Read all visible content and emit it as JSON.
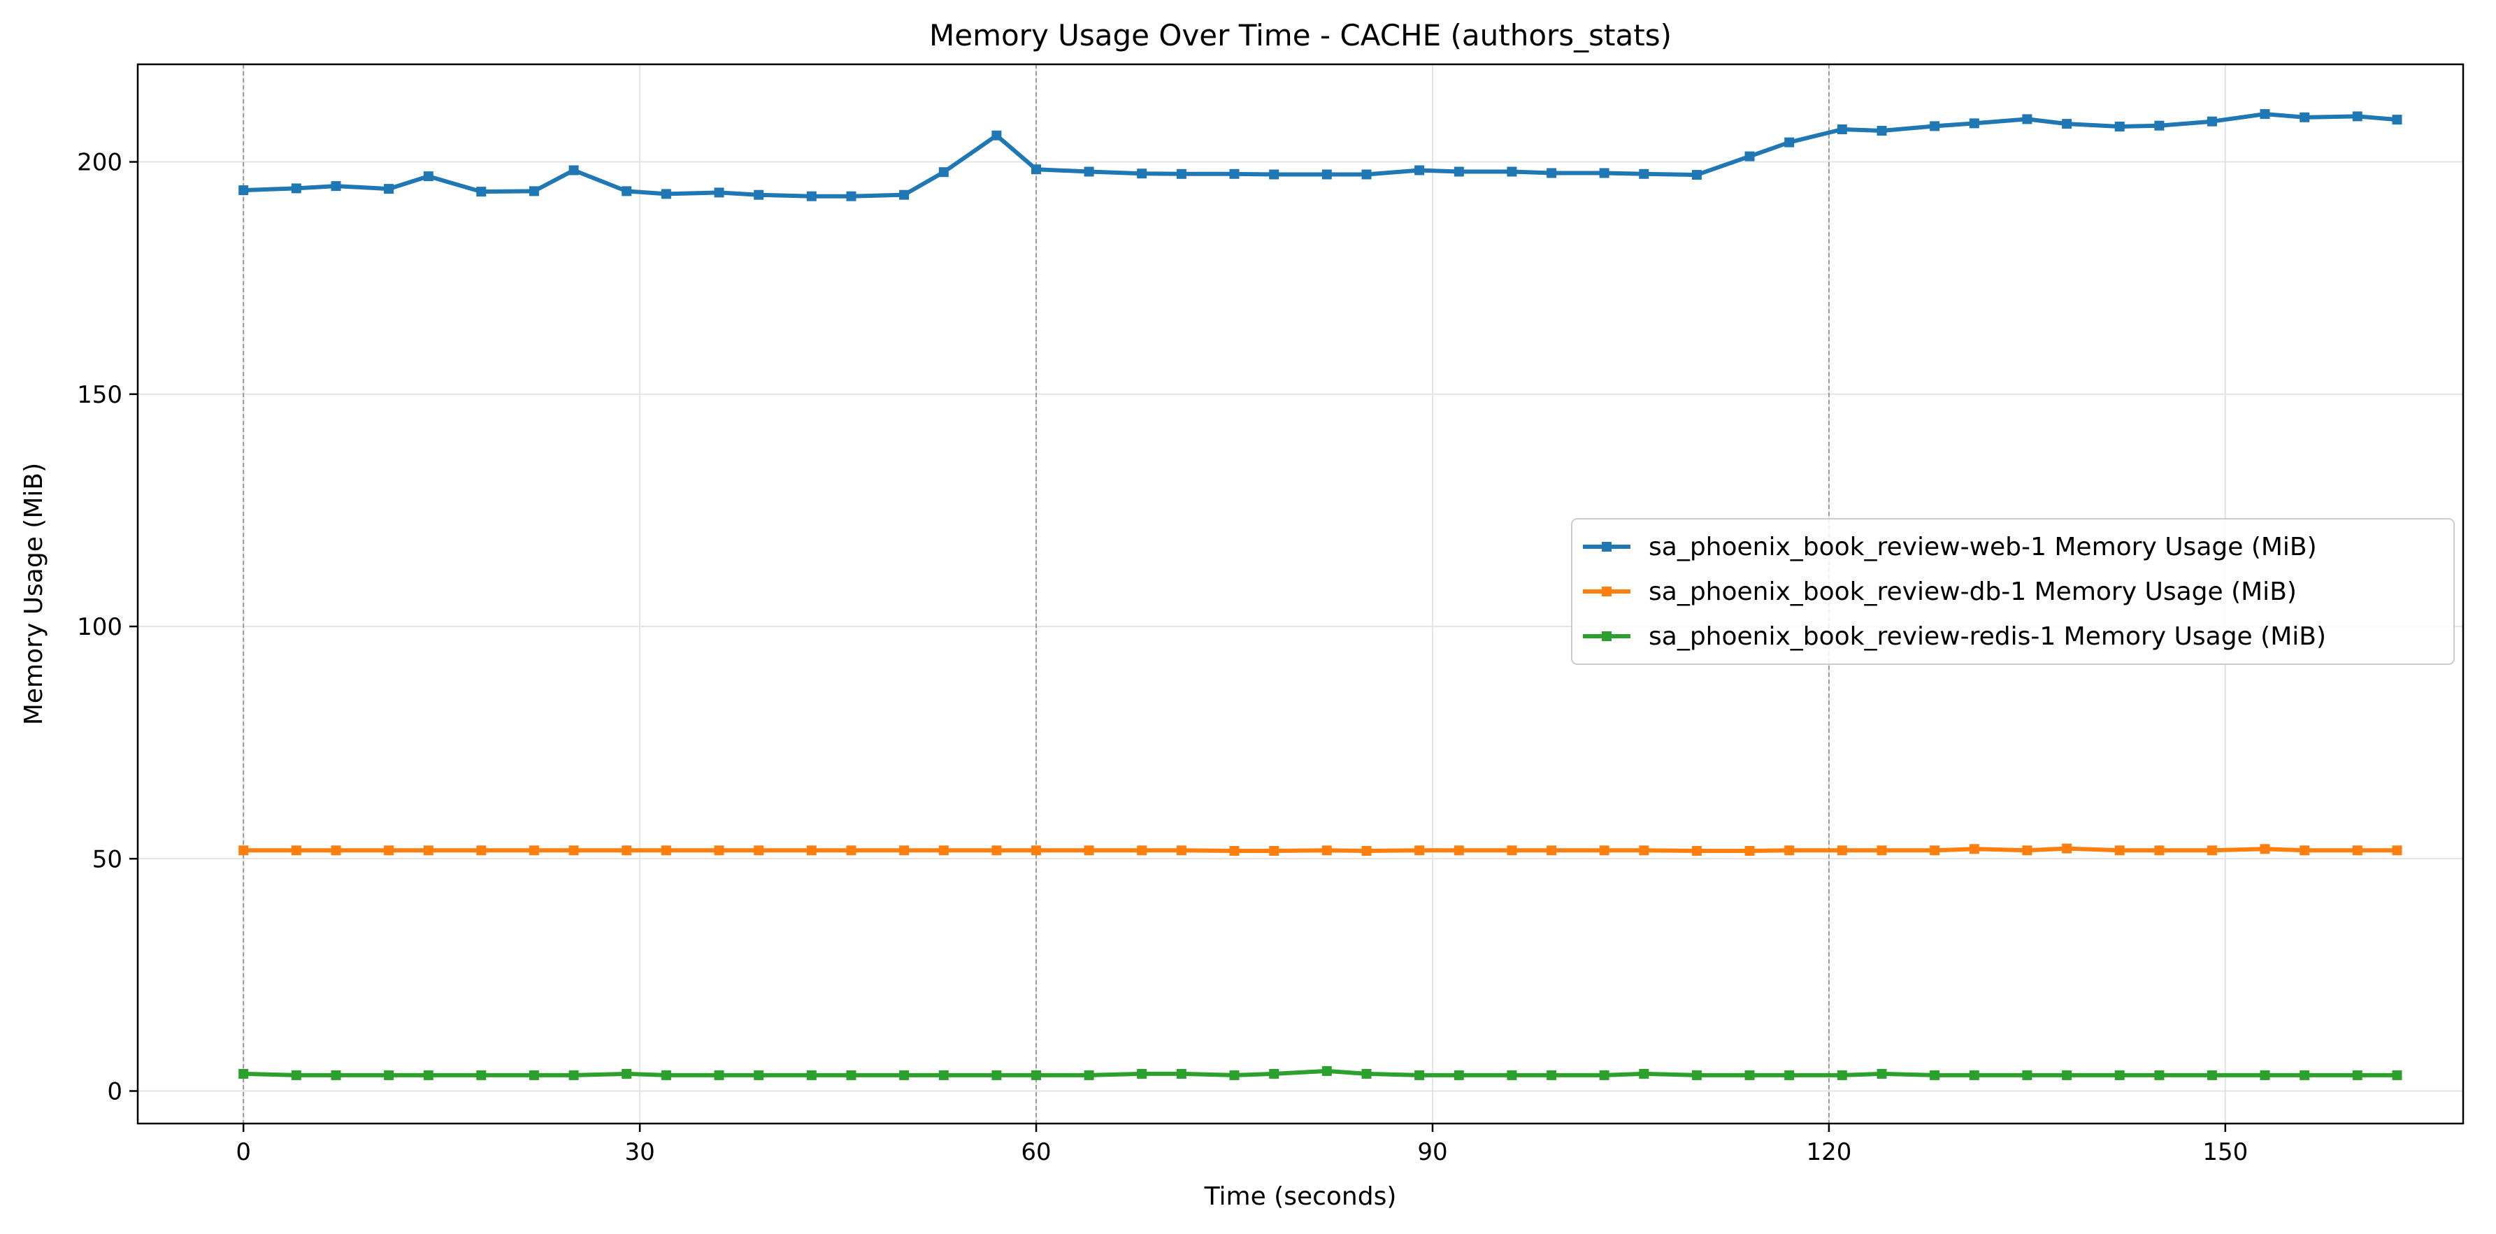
{
  "chart_data": {
    "type": "line",
    "title": "Memory Usage Over Time - CACHE (authors_stats)",
    "xlabel": "Time (seconds)",
    "ylabel": "Memory Usage (MiB)",
    "xlim": [
      -8,
      168
    ],
    "ylim": [
      -7,
      221
    ],
    "xticks": [
      0,
      30,
      60,
      90,
      120,
      150
    ],
    "yticks": [
      0,
      50,
      100,
      150,
      200
    ],
    "grid": true,
    "phase_lines_x": [
      0,
      60,
      120
    ],
    "legend_position": "center-right",
    "x": [
      0,
      4,
      7,
      11,
      14,
      18,
      22,
      25,
      29,
      32,
      36,
      39,
      43,
      46,
      50,
      53,
      57,
      60,
      64,
      68,
      71,
      75,
      78,
      82,
      85,
      89,
      92,
      96,
      99,
      103,
      106,
      110,
      114,
      117,
      121,
      124,
      128,
      131,
      135,
      138,
      142,
      145,
      149,
      153,
      156,
      160,
      163
    ],
    "series": [
      {
        "name": "sa_phoenix_book_review-web-1 Memory Usage (MiB)",
        "color": "#1f77b4",
        "values": [
          193.9,
          194.3,
          194.8,
          194.2,
          196.9,
          193.6,
          193.7,
          198.2,
          193.7,
          193.1,
          193.4,
          192.9,
          192.6,
          192.6,
          192.9,
          197.8,
          205.7,
          198.4,
          197.9,
          197.5,
          197.4,
          197.4,
          197.3,
          197.3,
          197.3,
          198.2,
          197.9,
          197.9,
          197.6,
          197.6,
          197.4,
          197.2,
          201.2,
          204.2,
          207.0,
          206.7,
          207.7,
          208.3,
          209.2,
          208.2,
          207.6,
          207.8,
          208.7,
          210.3,
          209.6,
          209.8,
          209.1
        ]
      },
      {
        "name": "sa_phoenix_book_review-db-1 Memory Usage (MiB)",
        "color": "#ff7f0e",
        "values": [
          51.8,
          51.8,
          51.8,
          51.8,
          51.8,
          51.8,
          51.8,
          51.8,
          51.8,
          51.8,
          51.8,
          51.8,
          51.8,
          51.8,
          51.8,
          51.8,
          51.8,
          51.8,
          51.8,
          51.8,
          51.8,
          51.7,
          51.7,
          51.8,
          51.7,
          51.8,
          51.8,
          51.8,
          51.8,
          51.8,
          51.8,
          51.7,
          51.7,
          51.8,
          51.8,
          51.8,
          51.8,
          52.1,
          51.8,
          52.2,
          51.8,
          51.8,
          51.8,
          52.1,
          51.8,
          51.8,
          51.8
        ]
      },
      {
        "name": "sa_phoenix_book_review-redis-1 Memory Usage (MiB)",
        "color": "#2ca02c",
        "values": [
          3.7,
          3.4,
          3.4,
          3.4,
          3.4,
          3.4,
          3.4,
          3.4,
          3.7,
          3.4,
          3.4,
          3.4,
          3.4,
          3.4,
          3.4,
          3.4,
          3.4,
          3.4,
          3.4,
          3.7,
          3.7,
          3.4,
          3.7,
          4.3,
          3.7,
          3.4,
          3.4,
          3.4,
          3.4,
          3.4,
          3.7,
          3.4,
          3.4,
          3.4,
          3.4,
          3.7,
          3.4,
          3.4,
          3.4,
          3.4,
          3.4,
          3.4,
          3.4,
          3.4,
          3.4,
          3.4,
          3.4
        ]
      }
    ]
  }
}
